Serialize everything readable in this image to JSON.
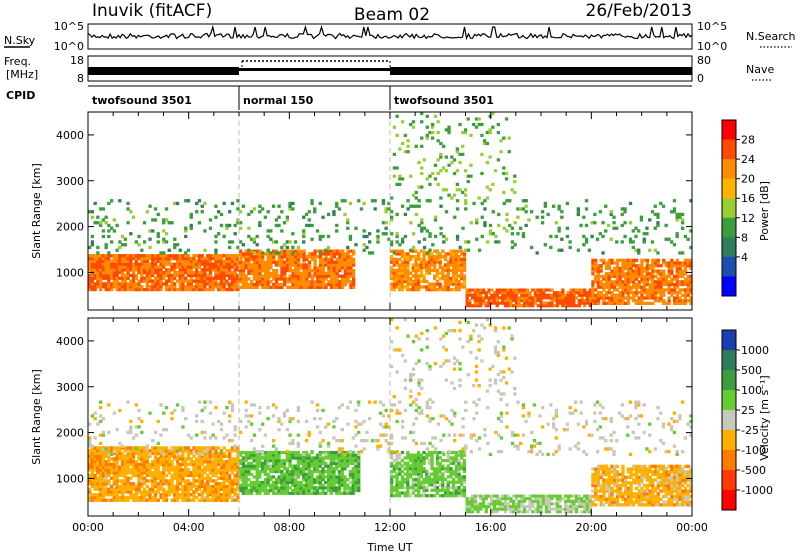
{
  "header": {
    "station": "Inuvik (fitACF)",
    "beam": "Beam 02",
    "date": "26/Feb/2013"
  },
  "top_panels": {
    "nsky": {
      "label": "N.Sky",
      "left_ticks": [
        "10^5",
        "10^0"
      ],
      "right_ticks": [
        "10^5",
        "10^0"
      ],
      "right_label": "N.Search"
    },
    "freq": {
      "label_lines": [
        "Freq.",
        "[MHz]"
      ],
      "left_ticks": [
        "18",
        "8"
      ],
      "right_ticks": [
        "80",
        "0"
      ],
      "right_label": "Nave"
    },
    "cpid": {
      "label": "CPID",
      "segments": [
        {
          "name": "twofsound 3501",
          "start_h": 0,
          "end_h": 6
        },
        {
          "name": "normal 150",
          "start_h": 6,
          "end_h": 12
        },
        {
          "name": "twofsound 3501",
          "start_h": 12,
          "end_h": 24
        }
      ]
    }
  },
  "chart_data": [
    {
      "type": "heatmap",
      "name": "Power",
      "ylabel": "Slant Range [km]",
      "ylim": [
        180,
        4500
      ],
      "yticks": [
        1000,
        2000,
        3000,
        4000
      ],
      "xlim_hours": [
        0,
        24
      ],
      "colorbar": {
        "label": "Power [dB]",
        "ticks": [
          "28",
          "24",
          "20",
          "16",
          "12",
          "8",
          "4"
        ],
        "colors": [
          "#ff0000",
          "#ff4a00",
          "#ff8c00",
          "#ffb300",
          "#9acd32",
          "#3c9d3c",
          "#2f7f5f",
          "#1c4fb0",
          "#0000ff"
        ],
        "range": [
          0,
          32
        ]
      },
      "bands": [
        {
          "x0": 0,
          "x1": 6,
          "r0": 600,
          "r1": 1400,
          "value": 26,
          "density": 0.9
        },
        {
          "x0": 6,
          "x1": 10.6,
          "r0": 650,
          "r1": 1500,
          "value": 25,
          "density": 0.85
        },
        {
          "x0": 12,
          "x1": 15,
          "r0": 600,
          "r1": 1500,
          "value": 24,
          "density": 0.8
        },
        {
          "x0": 15,
          "x1": 20,
          "r0": 250,
          "r1": 650,
          "value": 27,
          "density": 0.85
        },
        {
          "x0": 20,
          "x1": 24,
          "r0": 300,
          "r1": 1300,
          "value": 25,
          "density": 0.8
        },
        {
          "x0": 0,
          "x1": 24,
          "r0": 1400,
          "r1": 2600,
          "value": 12,
          "density": 0.12
        },
        {
          "x0": 12,
          "x1": 17,
          "r0": 2600,
          "r1": 4500,
          "value": 14,
          "density": 0.1
        }
      ]
    },
    {
      "type": "heatmap",
      "name": "Velocity",
      "ylabel": "Slant Range [km]",
      "ylim": [
        180,
        4500
      ],
      "yticks": [
        1000,
        2000,
        3000,
        4000
      ],
      "xlim_hours": [
        0,
        24
      ],
      "xticks": [
        "00:00",
        "04:00",
        "08:00",
        "12:00",
        "16:00",
        "20:00",
        "00:00"
      ],
      "xlabel": "Time UT",
      "colorbar": {
        "label": "Velocity [m s⁻¹]",
        "ticks": [
          "1000",
          "500",
          "100",
          "25",
          "-25",
          "-100",
          "-500",
          "-1000"
        ],
        "colors": [
          "#1c3fb0",
          "#2e7b5e",
          "#3c9d3c",
          "#66cc33",
          "#c8c8b8",
          "#ffb000",
          "#ff7a00",
          "#ff3a00",
          "#ff0000"
        ],
        "range": [
          -1000,
          1000
        ]
      },
      "bands": [
        {
          "x0": 0,
          "x1": 6,
          "r0": 500,
          "r1": 1700,
          "value": -300,
          "density": 0.85
        },
        {
          "x0": 6,
          "x1": 10.8,
          "r0": 650,
          "r1": 1600,
          "value": 300,
          "density": 0.85
        },
        {
          "x0": 12,
          "x1": 15,
          "r0": 600,
          "r1": 1600,
          "value": 250,
          "density": 0.75
        },
        {
          "x0": 15,
          "x1": 20,
          "r0": 250,
          "r1": 650,
          "value": 180,
          "density": 0.8
        },
        {
          "x0": 20,
          "x1": 24,
          "r0": 400,
          "r1": 1300,
          "value": -250,
          "density": 0.8
        },
        {
          "x0": 0,
          "x1": 24,
          "r0": 1500,
          "r1": 2700,
          "value": 0,
          "density": 0.12
        },
        {
          "x0": 12,
          "x1": 17,
          "r0": 2700,
          "r1": 4500,
          "value": -20,
          "density": 0.1
        }
      ]
    }
  ]
}
